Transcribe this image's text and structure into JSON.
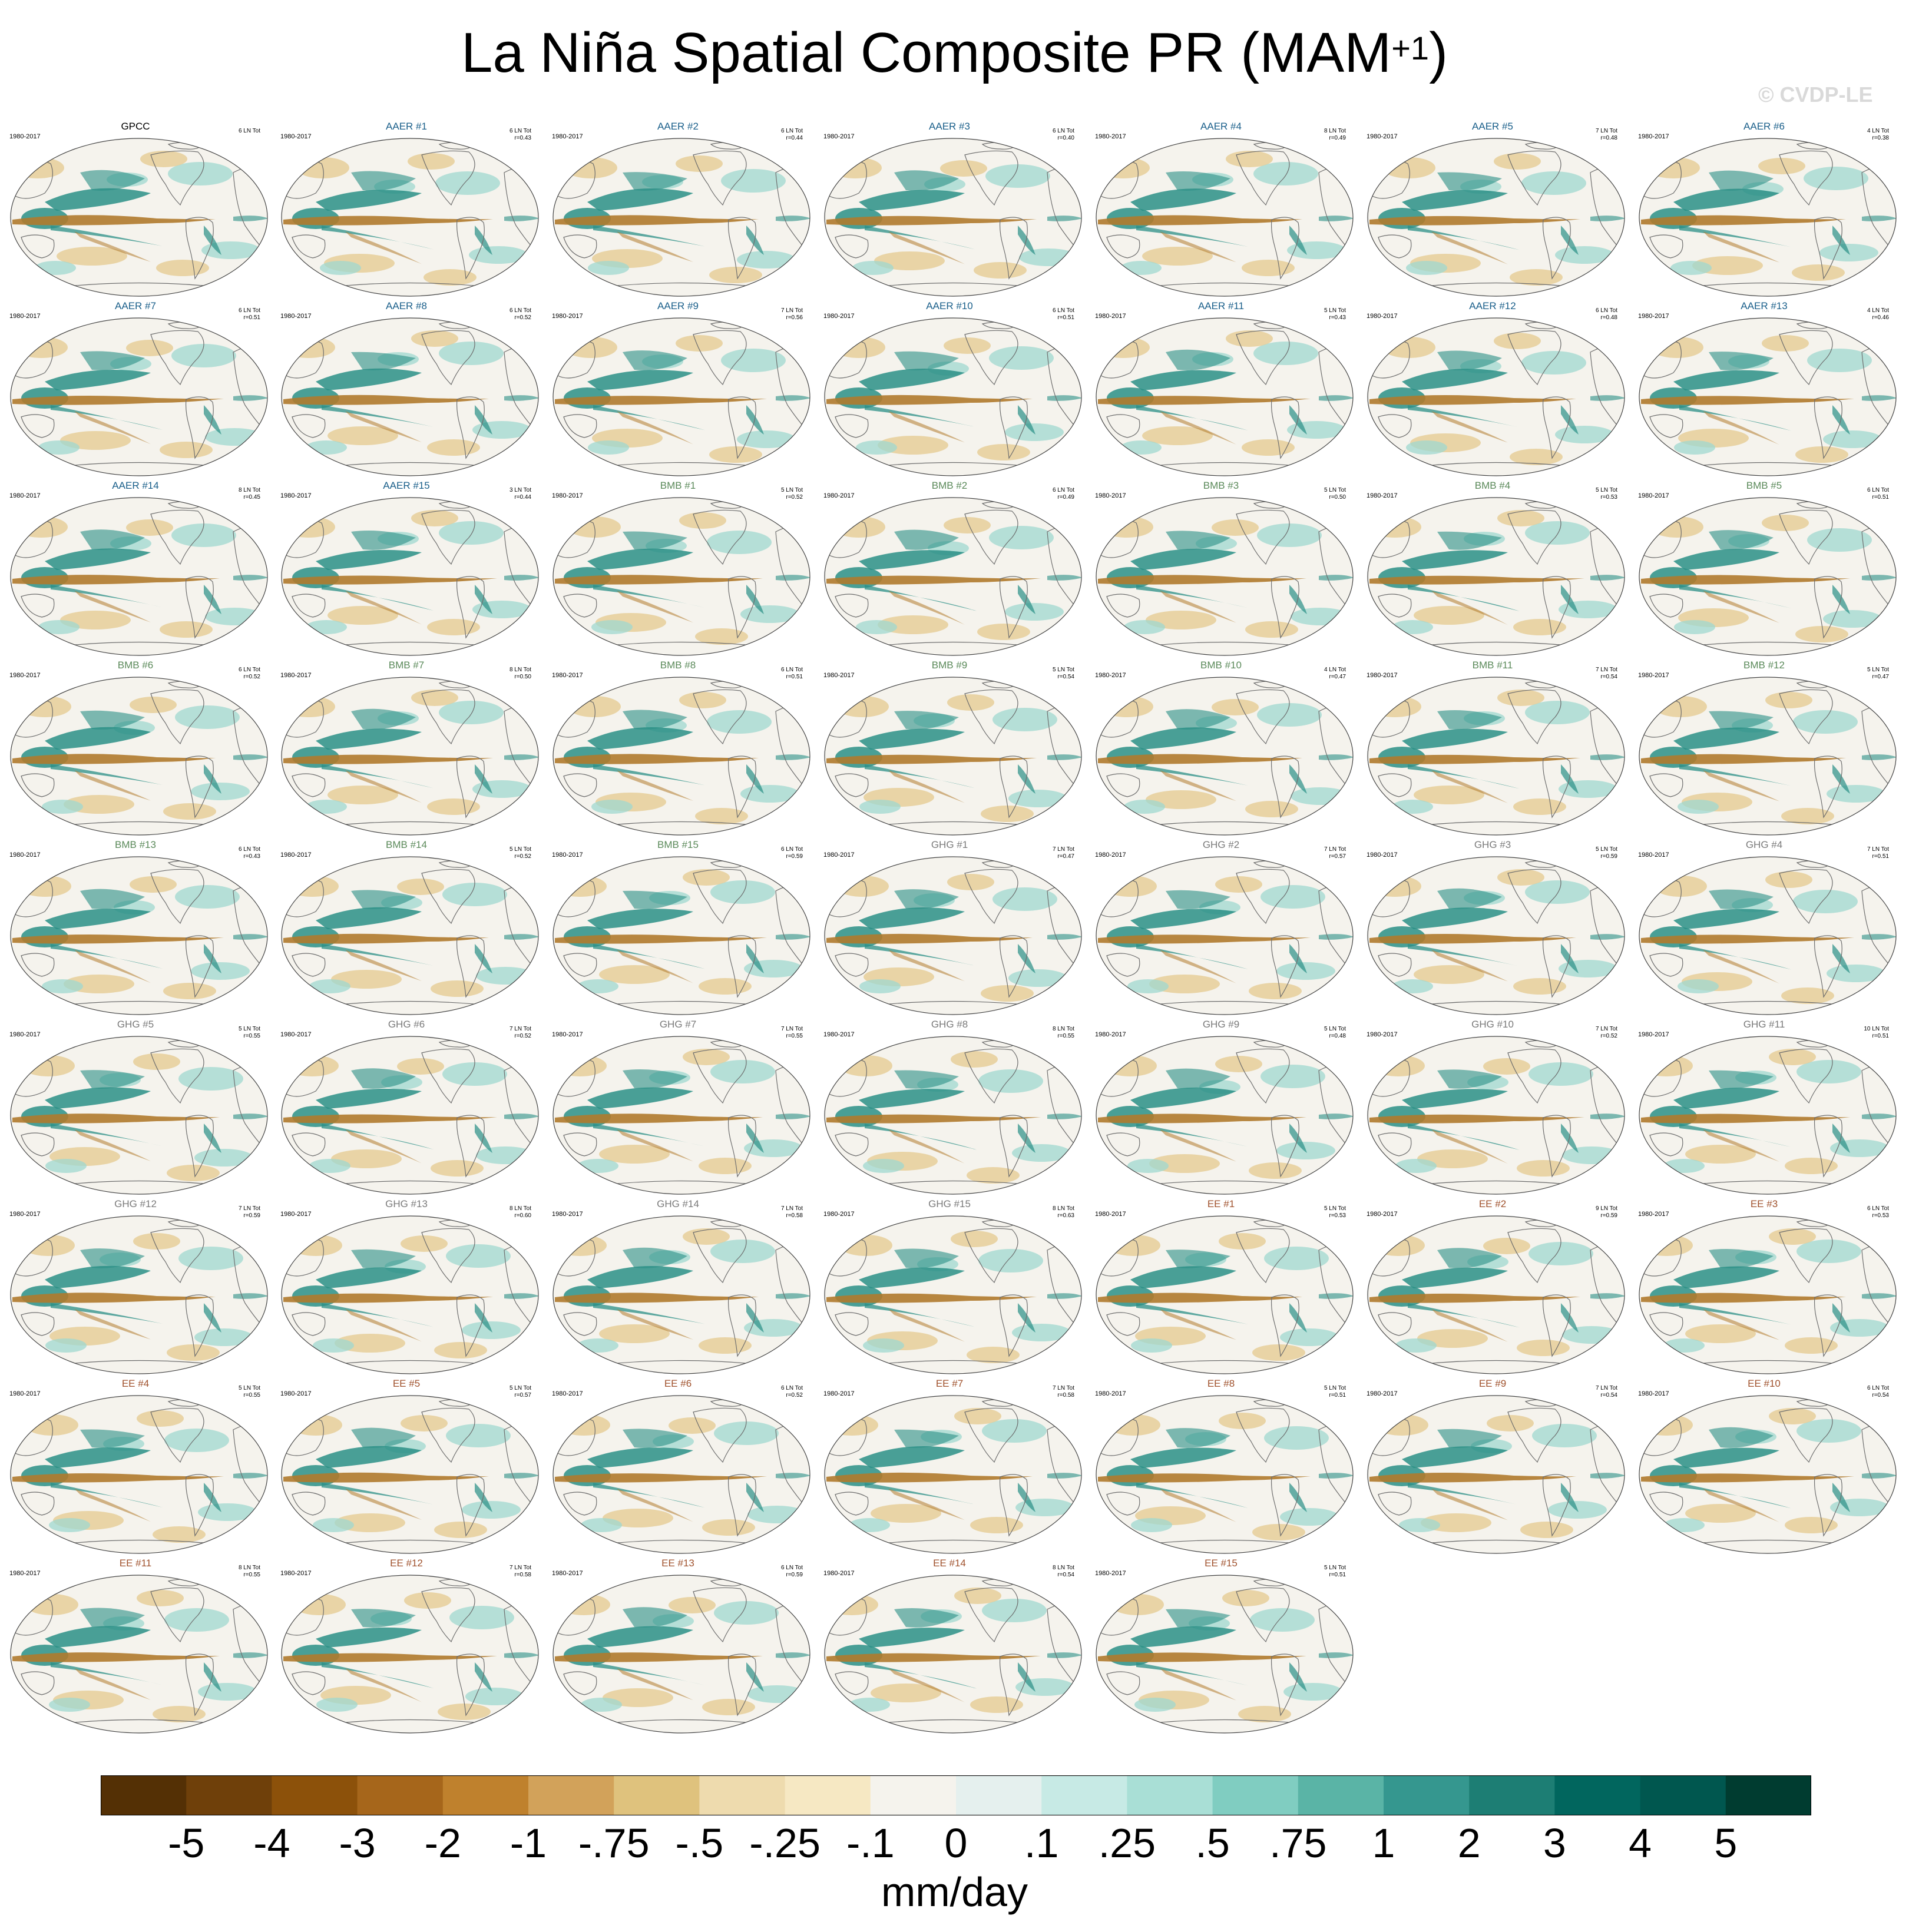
{
  "title": {
    "main": "La Niña Spatial Composite PR (MAM",
    "sup": "+1",
    "close": ")"
  },
  "watermark": "© CVDP-LE",
  "period": "1980-2017",
  "group_colors": {
    "OBS": "#000000",
    "AAER": "#1a5f8a",
    "BMB": "#5b8a5a",
    "GHG": "#7a7a7a",
    "EE": "#a0522d"
  },
  "panels": [
    {
      "name": "GPCC",
      "group": "OBS",
      "count": "6 LN Tot",
      "r": ""
    },
    {
      "name": "AAER #1",
      "group": "AAER",
      "count": "6 LN Tot",
      "r": "r=0.43"
    },
    {
      "name": "AAER #2",
      "group": "AAER",
      "count": "6 LN Tot",
      "r": "r=0.44"
    },
    {
      "name": "AAER #3",
      "group": "AAER",
      "count": "6 LN Tot",
      "r": "r=0.40"
    },
    {
      "name": "AAER #4",
      "group": "AAER",
      "count": "8 LN Tot",
      "r": "r=0.49"
    },
    {
      "name": "AAER #5",
      "group": "AAER",
      "count": "7 LN Tot",
      "r": "r=0.48"
    },
    {
      "name": "AAER #6",
      "group": "AAER",
      "count": "4 LN Tot",
      "r": "r=0.38"
    },
    {
      "name": "AAER #7",
      "group": "AAER",
      "count": "6 LN Tot",
      "r": "r=0.51"
    },
    {
      "name": "AAER #8",
      "group": "AAER",
      "count": "6 LN Tot",
      "r": "r=0.52"
    },
    {
      "name": "AAER #9",
      "group": "AAER",
      "count": "7 LN Tot",
      "r": "r=0.56"
    },
    {
      "name": "AAER #10",
      "group": "AAER",
      "count": "6 LN Tot",
      "r": "r=0.51"
    },
    {
      "name": "AAER #11",
      "group": "AAER",
      "count": "5 LN Tot",
      "r": "r=0.43"
    },
    {
      "name": "AAER #12",
      "group": "AAER",
      "count": "6 LN Tot",
      "r": "r=0.48"
    },
    {
      "name": "AAER #13",
      "group": "AAER",
      "count": "4 LN Tot",
      "r": "r=0.46"
    },
    {
      "name": "AAER #14",
      "group": "AAER",
      "count": "8 LN Tot",
      "r": "r=0.45"
    },
    {
      "name": "AAER #15",
      "group": "AAER",
      "count": "3 LN Tot",
      "r": "r=0.44"
    },
    {
      "name": "BMB #1",
      "group": "BMB",
      "count": "5 LN Tot",
      "r": "r=0.52"
    },
    {
      "name": "BMB #2",
      "group": "BMB",
      "count": "6 LN Tot",
      "r": "r=0.49"
    },
    {
      "name": "BMB #3",
      "group": "BMB",
      "count": "5 LN Tot",
      "r": "r=0.50"
    },
    {
      "name": "BMB #4",
      "group": "BMB",
      "count": "5 LN Tot",
      "r": "r=0.53"
    },
    {
      "name": "BMB #5",
      "group": "BMB",
      "count": "6 LN Tot",
      "r": "r=0.51"
    },
    {
      "name": "BMB #6",
      "group": "BMB",
      "count": "6 LN Tot",
      "r": "r=0.52"
    },
    {
      "name": "BMB #7",
      "group": "BMB",
      "count": "8 LN Tot",
      "r": "r=0.50"
    },
    {
      "name": "BMB #8",
      "group": "BMB",
      "count": "6 LN Tot",
      "r": "r=0.51"
    },
    {
      "name": "BMB #9",
      "group": "BMB",
      "count": "5 LN Tot",
      "r": "r=0.54"
    },
    {
      "name": "BMB #10",
      "group": "BMB",
      "count": "4 LN Tot",
      "r": "r=0.47"
    },
    {
      "name": "BMB #11",
      "group": "BMB",
      "count": "7 LN Tot",
      "r": "r=0.54"
    },
    {
      "name": "BMB #12",
      "group": "BMB",
      "count": "5 LN Tot",
      "r": "r=0.47"
    },
    {
      "name": "BMB #13",
      "group": "BMB",
      "count": "6 LN Tot",
      "r": "r=0.43"
    },
    {
      "name": "BMB #14",
      "group": "BMB",
      "count": "5 LN Tot",
      "r": "r=0.52"
    },
    {
      "name": "BMB #15",
      "group": "BMB",
      "count": "6 LN Tot",
      "r": "r=0.59"
    },
    {
      "name": "GHG #1",
      "group": "GHG",
      "count": "7 LN Tot",
      "r": "r=0.47"
    },
    {
      "name": "GHG #2",
      "group": "GHG",
      "count": "7 LN Tot",
      "r": "r=0.57"
    },
    {
      "name": "GHG #3",
      "group": "GHG",
      "count": "5 LN Tot",
      "r": "r=0.59"
    },
    {
      "name": "GHG #4",
      "group": "GHG",
      "count": "7 LN Tot",
      "r": "r=0.51"
    },
    {
      "name": "GHG #5",
      "group": "GHG",
      "count": "5 LN Tot",
      "r": "r=0.55"
    },
    {
      "name": "GHG #6",
      "group": "GHG",
      "count": "7 LN Tot",
      "r": "r=0.52"
    },
    {
      "name": "GHG #7",
      "group": "GHG",
      "count": "7 LN Tot",
      "r": "r=0.55"
    },
    {
      "name": "GHG #8",
      "group": "GHG",
      "count": "8 LN Tot",
      "r": "r=0.55"
    },
    {
      "name": "GHG #9",
      "group": "GHG",
      "count": "5 LN Tot",
      "r": "r=0.48"
    },
    {
      "name": "GHG #10",
      "group": "GHG",
      "count": "7 LN Tot",
      "r": "r=0.52"
    },
    {
      "name": "GHG #11",
      "group": "GHG",
      "count": "10 LN Tot",
      "r": "r=0.51"
    },
    {
      "name": "GHG #12",
      "group": "GHG",
      "count": "7 LN Tot",
      "r": "r=0.59"
    },
    {
      "name": "GHG #13",
      "group": "GHG",
      "count": "8 LN Tot",
      "r": "r=0.60"
    },
    {
      "name": "GHG #14",
      "group": "GHG",
      "count": "7 LN Tot",
      "r": "r=0.58"
    },
    {
      "name": "GHG #15",
      "group": "GHG",
      "count": "8 LN Tot",
      "r": "r=0.63"
    },
    {
      "name": "EE #1",
      "group": "EE",
      "count": "5 LN Tot",
      "r": "r=0.53"
    },
    {
      "name": "EE #2",
      "group": "EE",
      "count": "9 LN Tot",
      "r": "r=0.59"
    },
    {
      "name": "EE #3",
      "group": "EE",
      "count": "6 LN Tot",
      "r": "r=0.53"
    },
    {
      "name": "EE #4",
      "group": "EE",
      "count": "5 LN Tot",
      "r": "r=0.55"
    },
    {
      "name": "EE #5",
      "group": "EE",
      "count": "5 LN Tot",
      "r": "r=0.57"
    },
    {
      "name": "EE #6",
      "group": "EE",
      "count": "6 LN Tot",
      "r": "r=0.52"
    },
    {
      "name": "EE #7",
      "group": "EE",
      "count": "7 LN Tot",
      "r": "r=0.58"
    },
    {
      "name": "EE #8",
      "group": "EE",
      "count": "5 LN Tot",
      "r": "r=0.51"
    },
    {
      "name": "EE #9",
      "group": "EE",
      "count": "7 LN Tot",
      "r": "r=0.54"
    },
    {
      "name": "EE #10",
      "group": "EE",
      "count": "6 LN Tot",
      "r": "r=0.54"
    },
    {
      "name": "EE #11",
      "group": "EE",
      "count": "8 LN Tot",
      "r": "r=0.55"
    },
    {
      "name": "EE #12",
      "group": "EE",
      "count": "7 LN Tot",
      "r": "r=0.58"
    },
    {
      "name": "EE #13",
      "group": "EE",
      "count": "6 LN Tot",
      "r": "r=0.59"
    },
    {
      "name": "EE #14",
      "group": "EE",
      "count": "8 LN Tot",
      "r": "r=0.54"
    },
    {
      "name": "EE #15",
      "group": "EE",
      "count": "5 LN Tot",
      "r": "r=0.51"
    }
  ],
  "colorbar": {
    "colors": [
      "#543005",
      "#6f400a",
      "#8c510a",
      "#a6661b",
      "#bf812d",
      "#d2a25a",
      "#dfc27d",
      "#eedbae",
      "#f6e8c3",
      "#f5f3ed",
      "#e5f0ee",
      "#c7eae5",
      "#a9dfd6",
      "#80cdc1",
      "#5ab4a6",
      "#35978f",
      "#1d7e74",
      "#01665e",
      "#00574f",
      "#003c30"
    ],
    "labels": [
      "-5",
      "-4",
      "-3",
      "-2",
      "-1",
      "-.75",
      "-.5",
      "-.25",
      "-.1",
      "0",
      ".1",
      ".25",
      ".5",
      ".75",
      "1",
      "2",
      "3",
      "4",
      "5"
    ],
    "units": "mm/day"
  },
  "map_colors": {
    "ocean": "#f5f3ed",
    "dry": "#b07a2c",
    "wet": "#2a8f86",
    "tan": "#e4c98d",
    "teal": "#9fd8cf",
    "coast": "#6e6e6e"
  }
}
